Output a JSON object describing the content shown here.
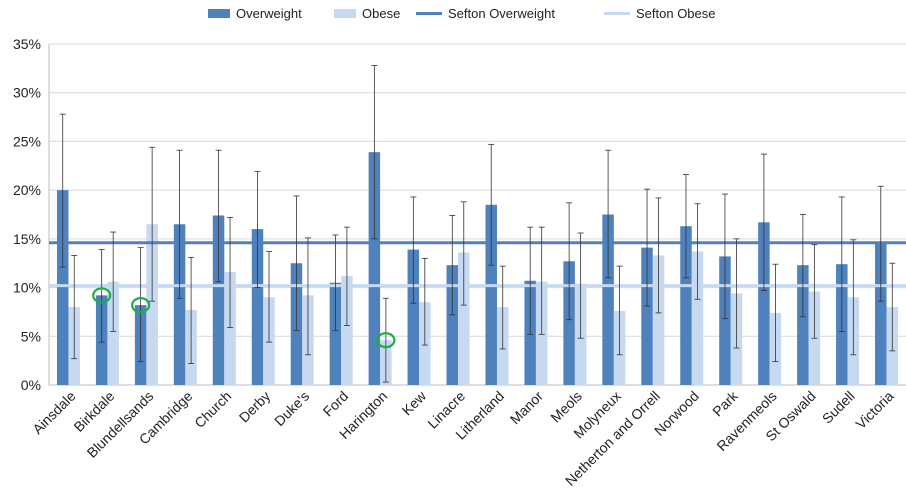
{
  "chart_data": {
    "type": "bar",
    "categories": [
      "Ainsdale",
      "Birkdale",
      "Blundellsands",
      "Cambridge",
      "Church",
      "Derby",
      "Duke's",
      "Ford",
      "Harington",
      "Kew",
      "Linacre",
      "Litherland",
      "Manor",
      "Meols",
      "Molyneux",
      "Netherton and Orrell",
      "Norwood",
      "Park",
      "Ravenmeols",
      "St Oswald",
      "Sudell",
      "Victoria"
    ],
    "series": [
      {
        "name": "Overweight",
        "color": "#4F81BD",
        "values": [
          20.0,
          9.2,
          8.2,
          16.5,
          17.4,
          16.0,
          12.5,
          10.5,
          23.9,
          13.9,
          12.3,
          18.5,
          10.7,
          12.7,
          17.5,
          14.1,
          16.3,
          13.2,
          16.7,
          12.3,
          12.4,
          14.7
        ],
        "err_low": [
          12.1,
          4.4,
          2.4,
          8.9,
          10.6,
          10.0,
          5.6,
          5.6,
          15.0,
          8.4,
          7.2,
          12.3,
          5.2,
          6.7,
          11.0,
          8.1,
          11.0,
          6.8,
          9.7,
          7.0,
          5.5,
          8.6
        ],
        "err_high": [
          27.8,
          13.9,
          14.1,
          24.1,
          24.1,
          21.9,
          19.4,
          15.4,
          32.8,
          19.3,
          17.4,
          24.7,
          16.2,
          18.7,
          24.1,
          20.1,
          21.6,
          19.6,
          23.7,
          17.5,
          19.3,
          20.4
        ]
      },
      {
        "name": "Obese",
        "color": "#C6D9F1",
        "values": [
          8.0,
          10.6,
          16.5,
          7.7,
          11.6,
          9.0,
          9.2,
          11.2,
          4.6,
          8.5,
          13.6,
          8.0,
          10.6,
          10.4,
          7.6,
          13.3,
          13.7,
          9.4,
          7.4,
          9.6,
          9.0,
          8.0
        ],
        "err_low": [
          2.7,
          5.5,
          8.6,
          2.2,
          5.9,
          4.4,
          3.1,
          6.1,
          0.3,
          4.1,
          8.2,
          3.7,
          5.2,
          4.8,
          3.1,
          7.4,
          8.8,
          3.8,
          2.4,
          4.8,
          3.1,
          3.5
        ],
        "err_high": [
          13.3,
          15.7,
          24.4,
          13.1,
          17.2,
          13.7,
          15.1,
          16.2,
          8.9,
          13.0,
          18.8,
          12.2,
          16.2,
          15.6,
          12.2,
          19.2,
          18.6,
          15.0,
          12.4,
          14.4,
          14.9,
          12.5
        ]
      }
    ],
    "reference_lines": [
      {
        "name": "Sefton Overweight",
        "value": 14.6,
        "color": "#4F81BD"
      },
      {
        "name": "Sefton Obese",
        "value": 10.2,
        "color": "#C6D9F1"
      }
    ],
    "highlights": [
      {
        "category": "Birkdale",
        "series": "Overweight",
        "color": "#22AA44"
      },
      {
        "category": "Blundellsands",
        "series": "Overweight",
        "color": "#22AA44"
      },
      {
        "category": "Harington",
        "series": "Obese",
        "color": "#22AA44"
      }
    ],
    "ytick_labels": [
      "0%",
      "5%",
      "10%",
      "15%",
      "20%",
      "25%",
      "30%",
      "35%"
    ],
    "ylim": [
      0,
      35
    ],
    "y_unit": "%",
    "grid": true,
    "legend_position": "top-center",
    "title": "",
    "xlabel": "",
    "ylabel": ""
  }
}
